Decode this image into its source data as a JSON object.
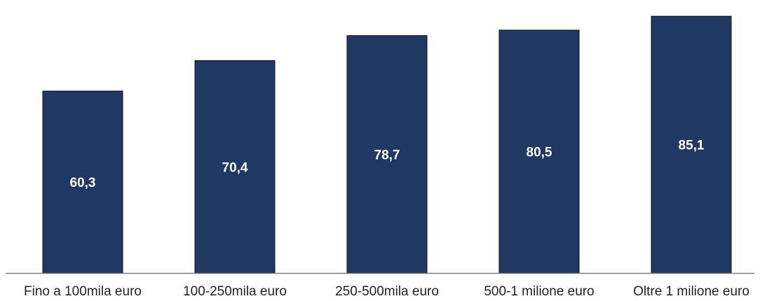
{
  "chart_data": {
    "type": "bar",
    "categories": [
      "Fino a 100mila euro",
      "100-250mila euro",
      "250-500mila euro",
      "500-1 milione euro",
      "Oltre 1 milione euro"
    ],
    "values": [
      60.3,
      70.4,
      78.7,
      80.5,
      85.1
    ],
    "value_labels": [
      "60,3",
      "70,4",
      "78,7",
      "80,5",
      "85,1"
    ],
    "ylim": [
      0,
      87
    ],
    "grid": false,
    "legend": "none",
    "colors": {
      "bar": "#203864",
      "axis": "#7f7f7f",
      "value_label": "#ffffff",
      "category_label": "#222222"
    }
  }
}
